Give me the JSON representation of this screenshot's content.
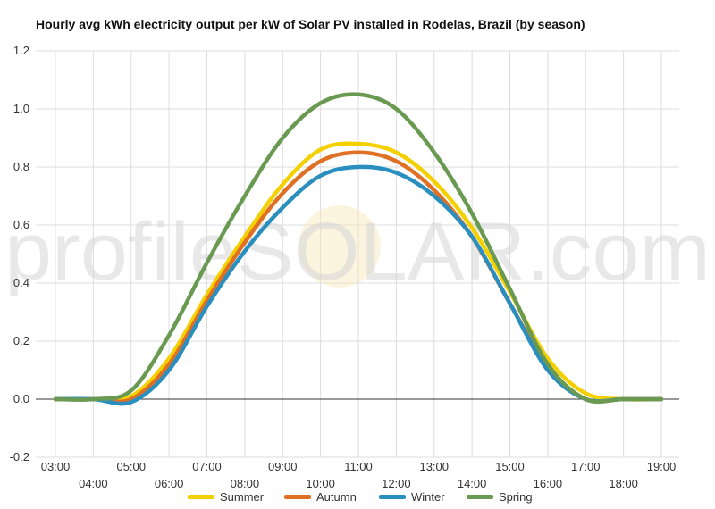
{
  "chart_data": {
    "type": "line",
    "title": "Hourly avg kWh electricity output per kW of Solar PV installed in Rodelas, Brazil (by season)",
    "watermark": "profileSOLAR.com",
    "xlabel": "",
    "ylabel": "",
    "x": [
      "03:00",
      "04:00",
      "05:00",
      "06:00",
      "07:00",
      "08:00",
      "09:00",
      "10:00",
      "11:00",
      "12:00",
      "13:00",
      "14:00",
      "15:00",
      "16:00",
      "17:00",
      "18:00",
      "19:00"
    ],
    "ylim": [
      -0.2,
      1.2
    ],
    "yticks": [
      "-0.2",
      "0.0",
      "0.2",
      "0.4",
      "0.6",
      "0.8",
      "1.0",
      "1.2"
    ],
    "grid": true,
    "legend_position": "bottom",
    "series": [
      {
        "name": "Summer",
        "color": "#f5d000",
        "values": [
          0,
          0,
          0.01,
          0.14,
          0.36,
          0.56,
          0.74,
          0.86,
          0.88,
          0.85,
          0.75,
          0.59,
          0.37,
          0.14,
          0.02,
          0,
          0
        ]
      },
      {
        "name": "Autumn",
        "color": "#e07024",
        "values": [
          0,
          0,
          0.0,
          0.12,
          0.34,
          0.54,
          0.71,
          0.82,
          0.85,
          0.82,
          0.72,
          0.56,
          0.33,
          0.11,
          0,
          0,
          0
        ]
      },
      {
        "name": "Winter",
        "color": "#2a8fbf",
        "values": [
          0,
          0,
          -0.01,
          0.1,
          0.32,
          0.51,
          0.66,
          0.77,
          0.8,
          0.78,
          0.7,
          0.56,
          0.33,
          0.1,
          0,
          0,
          0
        ]
      },
      {
        "name": "Spring",
        "color": "#6a9a52",
        "values": [
          0,
          0,
          0.03,
          0.22,
          0.47,
          0.7,
          0.9,
          1.02,
          1.05,
          1.0,
          0.85,
          0.64,
          0.38,
          0.12,
          0,
          0,
          0
        ]
      }
    ]
  }
}
